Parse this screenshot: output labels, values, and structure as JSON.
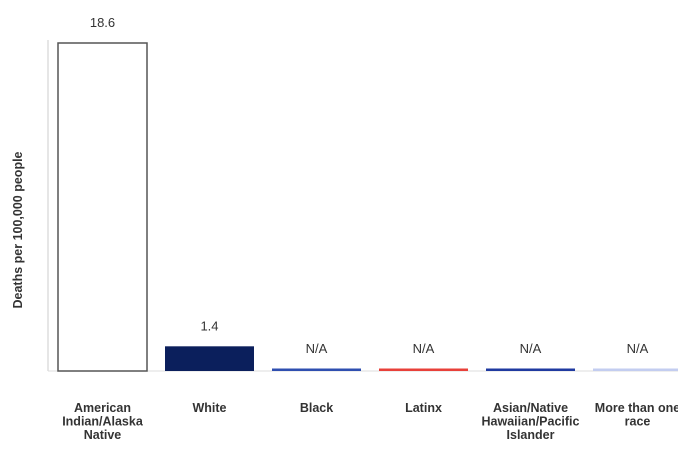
{
  "chart_data": {
    "type": "bar",
    "ylabel": "Deaths per 100,000 people",
    "xlabel": "",
    "title": "",
    "ylim": [
      0,
      18.6
    ],
    "categories": [
      [
        "American",
        "Indian/Alaska",
        "Native"
      ],
      [
        "White"
      ],
      [
        "Black"
      ],
      [
        "Latinx"
      ],
      [
        "Asian/Native",
        "Hawaiian/Pacific",
        "Islander"
      ],
      [
        "More than one",
        "race"
      ]
    ],
    "values": [
      18.6,
      1.4,
      null,
      null,
      null,
      null
    ],
    "data_labels": [
      "18.6",
      "1.4",
      "N/A",
      "N/A",
      "N/A",
      "N/A"
    ],
    "colors": [
      "#ffffff",
      "#0b1f5c",
      "#2f4fb0",
      "#e8403a",
      "#1f3aa0",
      "#c3cdf0"
    ],
    "outline_colors": [
      "#555555",
      null,
      null,
      null,
      null,
      null
    ],
    "grid": false,
    "legend": "none"
  }
}
